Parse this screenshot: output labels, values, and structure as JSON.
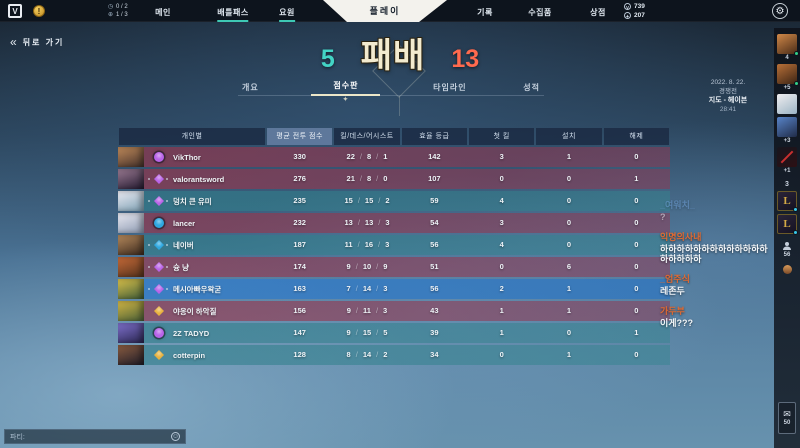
{
  "topbar": {
    "logo_letter": "V",
    "alert_icon": "!",
    "missions": [
      {
        "icon": "clock-icon",
        "text": "0 / 2"
      },
      {
        "icon": "crosshair-icon",
        "text": "1 / 3"
      }
    ],
    "nav_left": [
      {
        "label": "메인",
        "highlight": false
      },
      {
        "label": "배틀패스",
        "highlight": true
      },
      {
        "label": "요원",
        "highlight": true
      }
    ],
    "play_label": "플레이",
    "nav_right": [
      "기록",
      "수집품",
      "상점"
    ],
    "currencies": [
      {
        "icon": "valorant-points-icon",
        "value": "739"
      },
      {
        "icon": "radianite-icon",
        "value": "207"
      }
    ]
  },
  "back_button": {
    "label": "뒤로 가기"
  },
  "scoreline": {
    "ally_score": "5",
    "result": "패배",
    "enemy_score": "13",
    "ally_color": "#43d4c5",
    "enemy_color": "#ff6a4e"
  },
  "tabs": [
    {
      "label": "개요",
      "active": false
    },
    {
      "label": "점수판",
      "active": true
    },
    {
      "label": "타임라인",
      "active": false
    },
    {
      "label": "성적",
      "active": false
    }
  ],
  "match_info": {
    "date": "2022. 8. 22.",
    "mode": "경쟁전",
    "map": "지도 - 헤이븐",
    "duration": "28:41"
  },
  "scoreboard": {
    "columns": [
      "개인별",
      "평균 전투 점수",
      "킬/데스/어시스트",
      "효율 등급",
      "첫 킬",
      "설치",
      "해제"
    ],
    "rows": [
      {
        "name": "VikThor",
        "team": "red",
        "me": false,
        "acs": "330",
        "k": "22",
        "d": "8",
        "a": "1",
        "eff": "142",
        "first_kills": "3",
        "plants": "1",
        "defuses": "0",
        "agent": "phoenix",
        "portrait": [
          "#c08a5a",
          "#43302a"
        ],
        "rank_shape": "circle",
        "rank_color": "#b964e8",
        "rank_frame": false
      },
      {
        "name": "valorantsword",
        "team": "red",
        "me": false,
        "acs": "276",
        "k": "21",
        "d": "8",
        "a": "0",
        "eff": "107",
        "first_kills": "0",
        "plants": "0",
        "defuses": "1",
        "agent": "reyna",
        "portrait": [
          "#9a7a92",
          "#241a30"
        ],
        "rank_shape": "diamond",
        "rank_color": "#b964e8",
        "rank_frame": true
      },
      {
        "name": "덩치 큰 유미",
        "team": "teal",
        "me": false,
        "acs": "235",
        "k": "15",
        "d": "15",
        "a": "2",
        "eff": "59",
        "first_kills": "4",
        "plants": "0",
        "defuses": "0",
        "agent": "jett",
        "portrait": [
          "#ecebf2",
          "#7fa2b6"
        ],
        "rank_shape": "diamond",
        "rank_color": "#b964e8",
        "rank_frame": true
      },
      {
        "name": "lancer",
        "team": "red",
        "me": false,
        "acs": "232",
        "k": "13",
        "d": "13",
        "a": "3",
        "eff": "54",
        "first_kills": "3",
        "plants": "0",
        "defuses": "0",
        "agent": "jett",
        "portrait": [
          "#e9e9f1",
          "#8f9cb4"
        ],
        "rank_shape": "circle",
        "rank_color": "#2fa8e0",
        "rank_frame": false
      },
      {
        "name": "네이버",
        "team": "teal",
        "me": false,
        "acs": "187",
        "k": "11",
        "d": "16",
        "a": "3",
        "eff": "56",
        "first_kills": "4",
        "plants": "0",
        "defuses": "0",
        "agent": "brimstone",
        "portrait": [
          "#b5895c",
          "#3c2a1e"
        ],
        "rank_shape": "diamond",
        "rank_color": "#2fa8e0",
        "rank_frame": true
      },
      {
        "name": "슝 냥",
        "team": "red",
        "me": false,
        "acs": "174",
        "k": "9",
        "d": "10",
        "a": "9",
        "eff": "51",
        "first_kills": "0",
        "plants": "6",
        "defuses": "0",
        "agent": "brimstone",
        "portrait": [
          "#c76a38",
          "#54321c"
        ],
        "rank_shape": "diamond",
        "rank_color": "#b964e8",
        "rank_frame": true
      },
      {
        "name": "메시아빠우왁굳",
        "team": "teal",
        "me": true,
        "acs": "163",
        "k": "7",
        "d": "14",
        "a": "3",
        "eff": "56",
        "first_kills": "2",
        "plants": "1",
        "defuses": "0",
        "agent": "killjoy",
        "portrait": [
          "#d9c04a",
          "#3f5c38"
        ],
        "rank_shape": "diamond",
        "rank_color": "#b964e8",
        "rank_frame": true
      },
      {
        "name": "야옹이 하악질",
        "team": "red",
        "me": false,
        "acs": "156",
        "k": "9",
        "d": "11",
        "a": "3",
        "eff": "43",
        "first_kills": "1",
        "plants": "1",
        "defuses": "0",
        "agent": "killjoy",
        "portrait": [
          "#d2b644",
          "#4a6038"
        ],
        "rank_shape": "diamond",
        "rank_color": "#e8b23e",
        "rank_frame": false
      },
      {
        "name": "2Z TADYD",
        "team": "teal",
        "me": false,
        "acs": "147",
        "k": "9",
        "d": "15",
        "a": "5",
        "eff": "39",
        "first_kills": "1",
        "plants": "0",
        "defuses": "1",
        "agent": "yoru",
        "portrait": [
          "#7e70cc",
          "#2a2650"
        ],
        "rank_shape": "circle",
        "rank_color": "#b964e8",
        "rank_frame": false
      },
      {
        "name": "cotterpin",
        "team": "teal",
        "me": false,
        "acs": "128",
        "k": "8",
        "d": "14",
        "a": "2",
        "eff": "34",
        "first_kills": "0",
        "plants": "1",
        "defuses": "0",
        "agent": "phoenix",
        "portrait": [
          "#8a5c40",
          "#1f1c28"
        ],
        "rank_shape": "diamond",
        "rank_color": "#e8b23e",
        "rank_frame": false
      }
    ]
  },
  "chat": {
    "messages": [
      {
        "name": "_여워치_",
        "name_color": "#6f9fd8",
        "text": "?",
        "faded": true
      },
      {
        "name": "익명의사내",
        "name_color": "#e06a32",
        "text": "하하하하하하하하하하하하하하하하하하",
        "faded": false
      },
      {
        "name": "_엄주식",
        "name_color": "#e06a32",
        "text": "레존두",
        "faded": false
      },
      {
        "name": "가두부",
        "name_color": "#e06a32",
        "text": "이게???",
        "faded": false
      }
    ]
  },
  "party_chat": {
    "label": "파티:"
  },
  "social_sidebar": {
    "tiles": [
      {
        "type": "avatar",
        "grad": [
          "#d08848",
          "#4a2c18"
        ],
        "dot": "#34d08a",
        "sub": "4"
      },
      {
        "type": "avatar",
        "grad": [
          "#b87038",
          "#3c2414"
        ],
        "dot": "#34d08a",
        "sub": "+5"
      },
      {
        "type": "avatar",
        "grad": [
          "#f0eef0",
          "#9cb4c4"
        ],
        "dot": "",
        "sub": ""
      },
      {
        "type": "avatar",
        "grad": [
          "#5884c8",
          "#202c48"
        ],
        "dot": "",
        "sub": "+3"
      },
      {
        "type": "avatar",
        "grad": [
          "#16161e",
          "#2c1014"
        ],
        "slash": true,
        "dot": "",
        "sub": "+1"
      },
      {
        "type": "label",
        "text": "3"
      },
      {
        "type": "lol",
        "dot": "#38c8e8"
      },
      {
        "type": "lol",
        "dot": "#38c8e8"
      },
      {
        "type": "person",
        "sub": "56"
      },
      {
        "type": "mini"
      },
      {
        "type": "spacer"
      },
      {
        "type": "mail",
        "sub": "50"
      }
    ]
  }
}
